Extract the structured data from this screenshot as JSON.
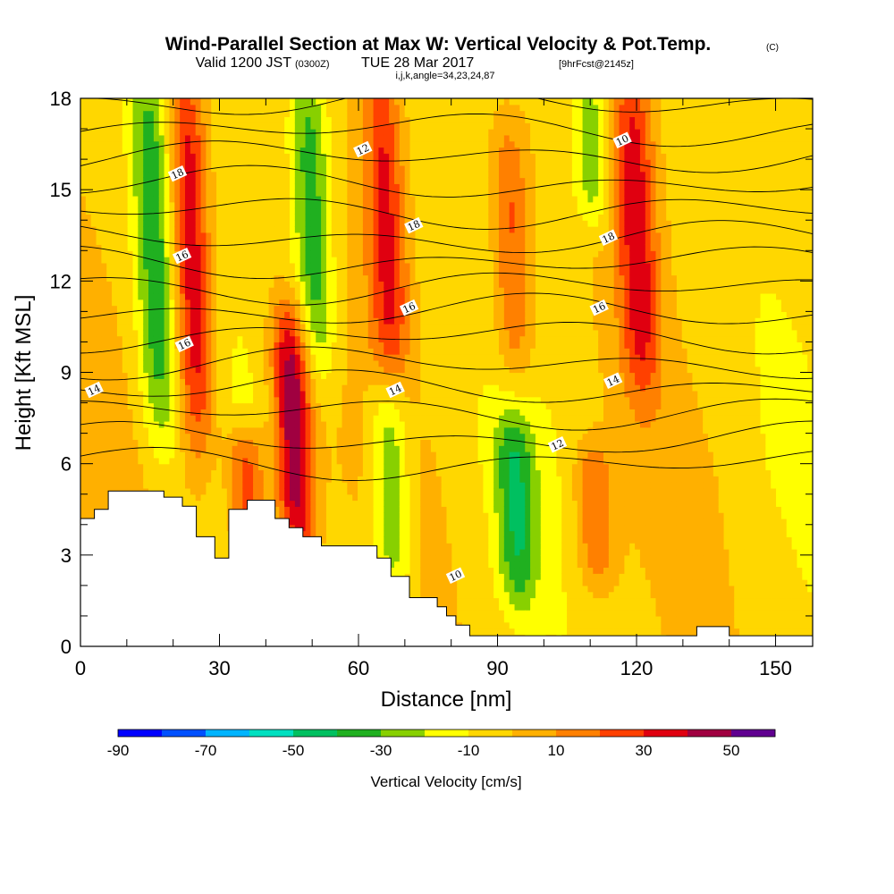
{
  "chart_data": {
    "type": "heatmap",
    "title_main": "Wind-Parallel Section at Max W: Vertical Velocity & Pot.Temp.",
    "copyright": "(C)",
    "subtitle": {
      "valid": "Valid 1200 JST",
      "utc": "(0300Z)",
      "date": "TUE 28 Mar 2017",
      "fcst": "[9hrFcst@2145z]"
    },
    "grid_info": "i,j,k,angle=34,23,24,87",
    "xlabel": "Distance [nm]",
    "ylabel": "Height [Kft MSL]",
    "xlim": [
      0,
      158
    ],
    "ylim": [
      0,
      18
    ],
    "x_ticks": [
      "0",
      "30",
      "60",
      "90",
      "120",
      "150"
    ],
    "y_ticks": [
      "0",
      "3",
      "6",
      "9",
      "12",
      "15",
      "18"
    ],
    "colorbar": {
      "label": "Vertical Velocity [cm/s]",
      "tick_labels": [
        "-90",
        "-70",
        "-50",
        "-30",
        "-10",
        "10",
        "30",
        "50"
      ],
      "levels": [
        -90,
        -80,
        -70,
        -60,
        -50,
        -40,
        -30,
        -20,
        -10,
        0,
        10,
        20,
        30,
        40,
        50,
        60
      ],
      "colors": [
        "#0000ff",
        "#0050ff",
        "#00b4ff",
        "#00e0c0",
        "#00c060",
        "#20b020",
        "#88d000",
        "#ffff00",
        "#ffd700",
        "#ffb000",
        "#ff8000",
        "#ff4000",
        "#e00010",
        "#a00040",
        "#600090"
      ]
    },
    "updraft_columns": [
      {
        "x": 24,
        "z_min": 7.5,
        "z_max": 18,
        "peak": 45
      },
      {
        "x": 46,
        "z_min": 4,
        "z_max": 10,
        "peak": 55
      },
      {
        "x": 66,
        "z_min": 10,
        "z_max": 18,
        "peak": 35
      },
      {
        "x": 93,
        "z_min": 10,
        "z_max": 16,
        "peak": 28
      },
      {
        "x": 120,
        "z_min": 9.5,
        "z_max": 18,
        "peak": 38
      },
      {
        "x": 36,
        "z_min": 4.5,
        "z_max": 6,
        "peak": 35
      },
      {
        "x": 111,
        "z_min": 3,
        "z_max": 5.5,
        "peak": 25
      }
    ],
    "downdraft_columns": [
      {
        "x": 16,
        "z_min": 7.5,
        "z_max": 18,
        "peak": -32
      },
      {
        "x": 50,
        "z_min": 10,
        "z_max": 18,
        "peak": -35
      },
      {
        "x": 67,
        "z_min": 3,
        "z_max": 7.5,
        "peak": -30
      },
      {
        "x": 94,
        "z_min": 2.5,
        "z_max": 6.5,
        "peak": -32
      },
      {
        "x": 110,
        "z_min": 15,
        "z_max": 18,
        "peak": -25
      }
    ],
    "theta_contours": {
      "label_values": [
        "18",
        "16",
        "16",
        "14",
        "12",
        "18",
        "16",
        "14",
        "12",
        "10",
        "10",
        "18",
        "16",
        "14",
        "12"
      ],
      "levels_kft": [
        6,
        6.8,
        7.7,
        8.5,
        9.3,
        10.2,
        11.0,
        11.8,
        12.6,
        13.4,
        14.3,
        15.2,
        16.1,
        17.0,
        17.9
      ]
    },
    "terrain": [
      [
        0,
        4.2
      ],
      [
        3,
        4.2
      ],
      [
        3,
        4.5
      ],
      [
        6,
        4.5
      ],
      [
        6,
        5.1
      ],
      [
        18,
        5.1
      ],
      [
        18,
        4.9
      ],
      [
        22,
        4.9
      ],
      [
        22,
        4.6
      ],
      [
        25,
        4.6
      ],
      [
        25,
        3.6
      ],
      [
        29,
        3.6
      ],
      [
        29,
        2.9
      ],
      [
        32,
        2.9
      ],
      [
        32,
        4.5
      ],
      [
        36,
        4.5
      ],
      [
        36,
        4.8
      ],
      [
        42,
        4.8
      ],
      [
        42,
        4.2
      ],
      [
        45,
        4.2
      ],
      [
        45,
        3.9
      ],
      [
        48,
        3.9
      ],
      [
        48,
        3.6
      ],
      [
        52,
        3.6
      ],
      [
        52,
        3.3
      ],
      [
        64,
        3.3
      ],
      [
        64,
        2.9
      ],
      [
        67,
        2.9
      ],
      [
        67,
        2.3
      ],
      [
        71,
        2.3
      ],
      [
        71,
        1.6
      ],
      [
        77,
        1.6
      ],
      [
        77,
        1.3
      ],
      [
        79,
        1.3
      ],
      [
        79,
        1.0
      ],
      [
        81,
        1.0
      ],
      [
        81,
        0.7
      ],
      [
        84,
        0.7
      ],
      [
        84,
        0.35
      ],
      [
        133,
        0.35
      ],
      [
        133,
        0.65
      ],
      [
        140,
        0.65
      ],
      [
        140,
        0.35
      ],
      [
        158,
        0.35
      ]
    ]
  }
}
